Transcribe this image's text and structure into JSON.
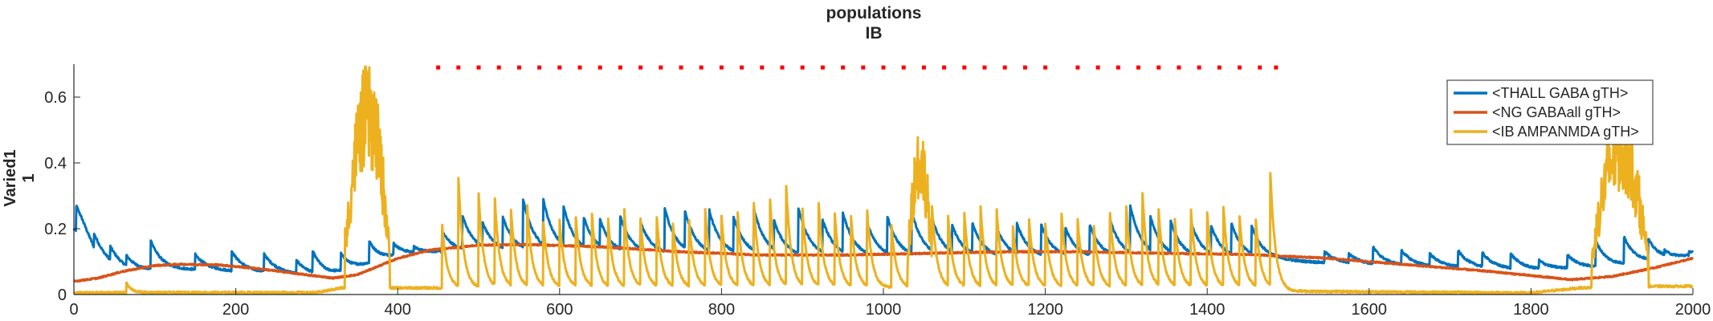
{
  "chart_data": {
    "type": "line",
    "title": "populations",
    "subtitle": "IB",
    "xlabel": "",
    "ylabel": "Varied1",
    "ylabel_line2": "1",
    "xlim": [
      0,
      2000
    ],
    "ylim": [
      0,
      0.7
    ],
    "xticks": [
      0,
      200,
      400,
      600,
      800,
      1000,
      1200,
      1400,
      1600,
      1800,
      2000
    ],
    "yticks": [
      0,
      0.2,
      0.4,
      0.6
    ],
    "ytick_labels": [
      "0",
      "0.2",
      "0.4",
      "0.6"
    ],
    "grid": false,
    "legend_position": "top-right",
    "series": [
      {
        "name": "<THALL GABA gTH>",
        "color": "#0072BD",
        "kind": "spiky",
        "baseline": [
          [
            0,
            0.2
          ],
          [
            10,
            0.17
          ],
          [
            30,
            0.09
          ],
          [
            60,
            0.07
          ],
          [
            150,
            0.075
          ],
          [
            250,
            0.065
          ],
          [
            310,
            0.055
          ],
          [
            400,
            0.12
          ],
          [
            450,
            0.13
          ],
          [
            700,
            0.12
          ],
          [
            1000,
            0.11
          ],
          [
            1300,
            0.11
          ],
          [
            1480,
            0.105
          ],
          [
            1600,
            0.09
          ],
          [
            1800,
            0.075
          ],
          [
            1900,
            0.085
          ],
          [
            2000,
            0.12
          ]
        ],
        "spikes": [
          [
            3,
            0.27
          ],
          [
            25,
            0.15
          ],
          [
            45,
            0.12
          ],
          [
            65,
            0.1
          ],
          [
            95,
            0.16
          ],
          [
            150,
            0.12
          ],
          [
            195,
            0.13
          ],
          [
            235,
            0.12
          ],
          [
            275,
            0.1
          ],
          [
            295,
            0.12
          ],
          [
            330,
            0.12
          ],
          [
            365,
            0.16
          ],
          [
            395,
            0.15
          ],
          [
            420,
            0.14
          ],
          [
            455,
            0.19
          ],
          [
            480,
            0.23
          ],
          [
            505,
            0.2
          ],
          [
            530,
            0.22
          ],
          [
            555,
            0.27
          ],
          [
            580,
            0.26
          ],
          [
            605,
            0.24
          ],
          [
            630,
            0.21
          ],
          [
            650,
            0.2
          ],
          [
            675,
            0.22
          ],
          [
            700,
            0.2
          ],
          [
            730,
            0.25
          ],
          [
            755,
            0.23
          ],
          [
            785,
            0.24
          ],
          [
            815,
            0.22
          ],
          [
            840,
            0.24
          ],
          [
            865,
            0.2
          ],
          [
            895,
            0.25
          ],
          [
            925,
            0.21
          ],
          [
            950,
            0.23
          ],
          [
            980,
            0.2
          ],
          [
            1005,
            0.22
          ],
          [
            1035,
            0.24
          ],
          [
            1060,
            0.21
          ],
          [
            1085,
            0.19
          ],
          [
            1110,
            0.2
          ],
          [
            1140,
            0.19
          ],
          [
            1165,
            0.2
          ],
          [
            1195,
            0.2
          ],
          [
            1225,
            0.19
          ],
          [
            1255,
            0.2
          ],
          [
            1280,
            0.21
          ],
          [
            1305,
            0.25
          ],
          [
            1330,
            0.21
          ],
          [
            1355,
            0.2
          ],
          [
            1380,
            0.2
          ],
          [
            1405,
            0.19
          ],
          [
            1430,
            0.2
          ],
          [
            1455,
            0.19
          ],
          [
            1545,
            0.13
          ],
          [
            1575,
            0.12
          ],
          [
            1605,
            0.14
          ],
          [
            1640,
            0.13
          ],
          [
            1675,
            0.12
          ],
          [
            1710,
            0.13
          ],
          [
            1740,
            0.12
          ],
          [
            1775,
            0.12
          ],
          [
            1810,
            0.1
          ],
          [
            1845,
            0.12
          ],
          [
            1880,
            0.16
          ],
          [
            1915,
            0.17
          ],
          [
            1945,
            0.16
          ],
          [
            1965,
            0.12
          ],
          [
            1995,
            0.13
          ]
        ],
        "decay": 14
      },
      {
        "name": "<NG GABAall gTH>",
        "color": "#D95319",
        "kind": "smooth",
        "points": [
          [
            0,
            0.04
          ],
          [
            30,
            0.05
          ],
          [
            60,
            0.07
          ],
          [
            100,
            0.088
          ],
          [
            130,
            0.092
          ],
          [
            180,
            0.09
          ],
          [
            230,
            0.078
          ],
          [
            280,
            0.062
          ],
          [
            320,
            0.05
          ],
          [
            350,
            0.06
          ],
          [
            400,
            0.11
          ],
          [
            440,
            0.135
          ],
          [
            500,
            0.15
          ],
          [
            560,
            0.152
          ],
          [
            650,
            0.145
          ],
          [
            750,
            0.13
          ],
          [
            850,
            0.12
          ],
          [
            950,
            0.12
          ],
          [
            1050,
            0.125
          ],
          [
            1150,
            0.13
          ],
          [
            1250,
            0.13
          ],
          [
            1350,
            0.125
          ],
          [
            1450,
            0.122
          ],
          [
            1550,
            0.11
          ],
          [
            1650,
            0.09
          ],
          [
            1750,
            0.07
          ],
          [
            1850,
            0.045
          ],
          [
            1900,
            0.055
          ],
          [
            1950,
            0.08
          ],
          [
            2000,
            0.11
          ]
        ]
      },
      {
        "name": "<IB AMPANMDA gTH>",
        "color": "#EDB120",
        "kind": "spiky",
        "baseline": [
          [
            0,
            0.005
          ],
          [
            60,
            0.006
          ],
          [
            300,
            0.006
          ],
          [
            330,
            0.02
          ],
          [
            420,
            0.02
          ],
          [
            1480,
            0.02
          ],
          [
            1500,
            0.01
          ],
          [
            1800,
            0.005
          ],
          [
            1860,
            0.02
          ],
          [
            1960,
            0.025
          ],
          [
            2000,
            0.025
          ]
        ],
        "spikes": [
          [
            65,
            0.035
          ],
          [
            335,
            0.2
          ],
          [
            455,
            0.21
          ],
          [
            475,
            0.35
          ],
          [
            500,
            0.3
          ],
          [
            520,
            0.28
          ],
          [
            540,
            0.25
          ],
          [
            560,
            0.26
          ],
          [
            580,
            0.21
          ],
          [
            600,
            0.22
          ],
          [
            620,
            0.23
          ],
          [
            640,
            0.24
          ],
          [
            660,
            0.22
          ],
          [
            680,
            0.25
          ],
          [
            700,
            0.22
          ],
          [
            720,
            0.23
          ],
          [
            740,
            0.21
          ],
          [
            760,
            0.22
          ],
          [
            780,
            0.25
          ],
          [
            800,
            0.23
          ],
          [
            820,
            0.24
          ],
          [
            840,
            0.27
          ],
          [
            860,
            0.28
          ],
          [
            880,
            0.32
          ],
          [
            900,
            0.25
          ],
          [
            920,
            0.27
          ],
          [
            940,
            0.24
          ],
          [
            960,
            0.23
          ],
          [
            980,
            0.25
          ],
          [
            1010,
            0.21
          ],
          [
            1060,
            0.27
          ],
          [
            1080,
            0.23
          ],
          [
            1100,
            0.24
          ],
          [
            1120,
            0.26
          ],
          [
            1140,
            0.25
          ],
          [
            1160,
            0.2
          ],
          [
            1180,
            0.22
          ],
          [
            1200,
            0.21
          ],
          [
            1220,
            0.24
          ],
          [
            1240,
            0.22
          ],
          [
            1260,
            0.2
          ],
          [
            1280,
            0.24
          ],
          [
            1300,
            0.26
          ],
          [
            1320,
            0.3
          ],
          [
            1340,
            0.25
          ],
          [
            1360,
            0.22
          ],
          [
            1380,
            0.25
          ],
          [
            1400,
            0.24
          ],
          [
            1420,
            0.26
          ],
          [
            1440,
            0.23
          ],
          [
            1460,
            0.22
          ],
          [
            1478,
            0.36
          ]
        ],
        "decay": 6,
        "bursts": [
          [
            335,
            390,
            0.7,
            0.15
          ],
          [
            1030,
            1060,
            0.52,
            0.14
          ],
          [
            1875,
            1945,
            0.56,
            0.12
          ]
        ]
      }
    ],
    "markers": {
      "color": "#FF0000",
      "y": 0.69,
      "x": [
        450,
        475,
        500,
        525,
        550,
        575,
        600,
        625,
        650,
        675,
        700,
        725,
        750,
        775,
        800,
        825,
        850,
        875,
        900,
        925,
        950,
        975,
        1000,
        1025,
        1050,
        1075,
        1100,
        1125,
        1150,
        1175,
        1200,
        1240,
        1265,
        1290,
        1315,
        1340,
        1365,
        1390,
        1415,
        1440,
        1465,
        1485
      ]
    }
  }
}
